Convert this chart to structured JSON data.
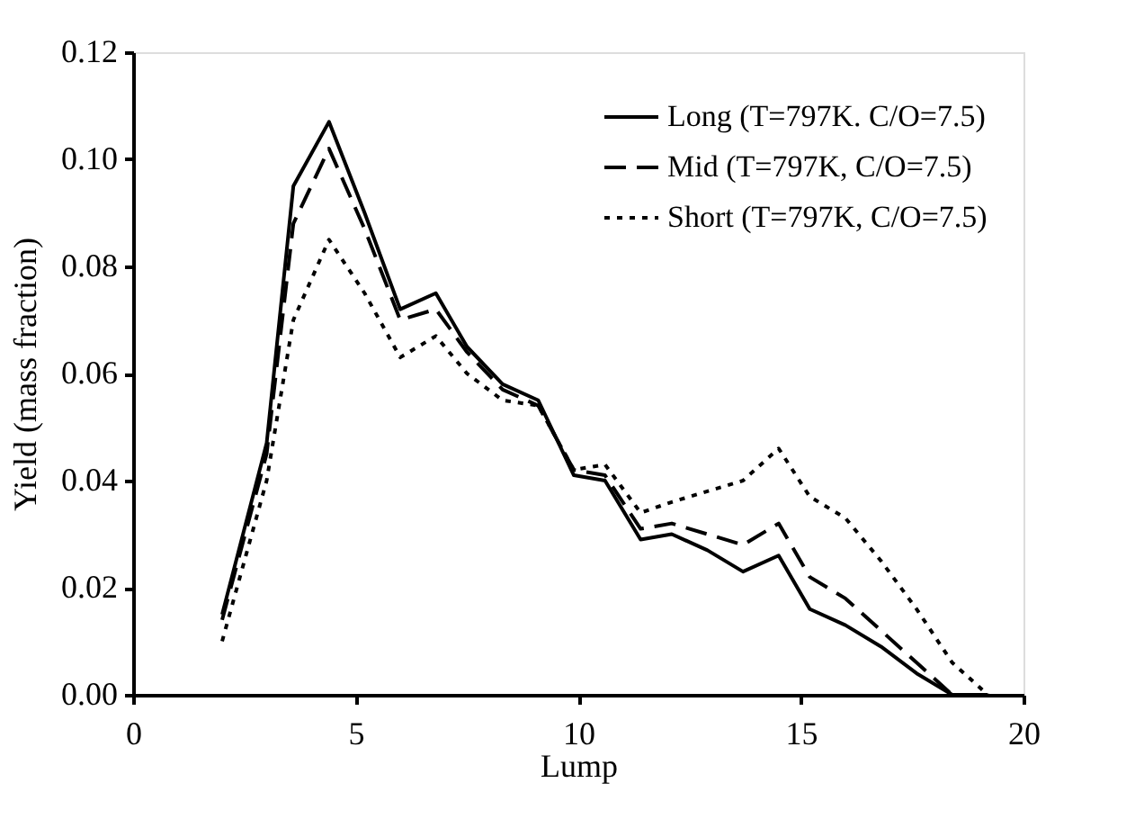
{
  "chart_data": {
    "type": "line",
    "xlabel": "Lump",
    "ylabel": "Yield (mass fraction)",
    "x": [
      2,
      3,
      3.6,
      4.4,
      5.2,
      6,
      6.8,
      7.5,
      8.3,
      9.1,
      9.9,
      10.6,
      11.4,
      12.1,
      12.9,
      13.7,
      14.5,
      15.2,
      16,
      16.8,
      17.6,
      18.4,
      19.2
    ],
    "series": [
      {
        "name": "Long (T=797K. C/O=7.5)",
        "color": "#000000",
        "line_style": "solid",
        "values": [
          0.015,
          0.047,
          0.095,
          0.107,
          0.09,
          0.072,
          0.075,
          0.065,
          0.058,
          0.055,
          0.041,
          0.04,
          0.029,
          0.03,
          0.027,
          0.023,
          0.026,
          0.016,
          0.013,
          0.009,
          0.004,
          0.0,
          0.0
        ]
      },
      {
        "name": "Mid (T=797K, C/O=7.5)",
        "color": "#000000",
        "line_style": "dashed",
        "values": [
          0.014,
          0.045,
          0.088,
          0.102,
          0.087,
          0.07,
          0.072,
          0.064,
          0.057,
          0.054,
          0.042,
          0.041,
          0.031,
          0.032,
          0.03,
          0.028,
          0.032,
          0.022,
          0.018,
          0.012,
          0.006,
          0.0,
          0.0
        ]
      },
      {
        "name": "Short (T=797K, C/O=7.5)",
        "color": "#000000",
        "line_style": "dotted",
        "values": [
          0.01,
          0.04,
          0.07,
          0.085,
          0.075,
          0.063,
          0.067,
          0.06,
          0.055,
          0.054,
          0.042,
          0.043,
          0.034,
          0.036,
          0.038,
          0.04,
          0.046,
          0.037,
          0.033,
          0.025,
          0.016,
          0.006,
          0.0
        ]
      }
    ],
    "xlim": [
      0,
      20
    ],
    "xticks": [
      0,
      5,
      10,
      15,
      20
    ],
    "ylim": [
      0,
      0.12
    ],
    "yticks": [
      {
        "value": 0,
        "label": "0.00"
      },
      {
        "value": 0.02,
        "label": "0.02"
      },
      {
        "value": 0.04,
        "label": "0.04"
      },
      {
        "value": 0.06,
        "label": "0.06"
      },
      {
        "value": 0.08,
        "label": "0.08"
      },
      {
        "value": 0.1,
        "label": "0.10"
      },
      {
        "value": 0.12,
        "label": "0.12"
      }
    ],
    "grid": false,
    "legend": "top right",
    "marker": "none"
  }
}
